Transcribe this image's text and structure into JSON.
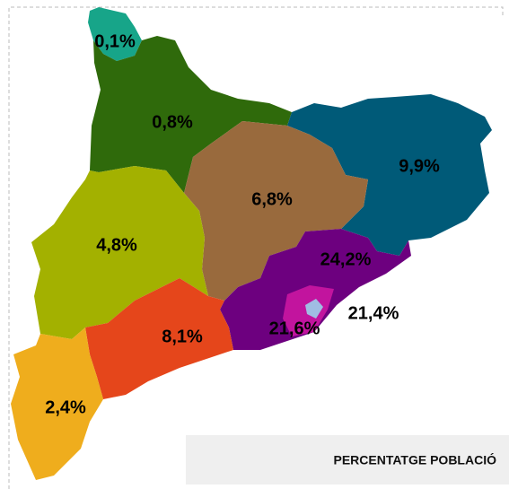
{
  "map": {
    "regions": [
      {
        "label": "0,1%",
        "color": "#17a589"
      },
      {
        "label": "0,8%",
        "color": "#2f6a0b"
      },
      {
        "label": "9,9%",
        "color": "#005a78"
      },
      {
        "label": "6,8%",
        "color": "#996a3d"
      },
      {
        "label": "4,8%",
        "color": "#a3b100"
      },
      {
        "label": "24,2%",
        "color": "#6d007f"
      },
      {
        "label": "21,4%",
        "color": "#a0bde3"
      },
      {
        "label": "21,6%",
        "color": "#c2149e"
      },
      {
        "label": "8,1%",
        "color": "#e5461b"
      },
      {
        "label": "2,4%",
        "color": "#efad1d"
      }
    ],
    "legend": {
      "title": "PERCENTATGE POBLACIÓ"
    }
  }
}
